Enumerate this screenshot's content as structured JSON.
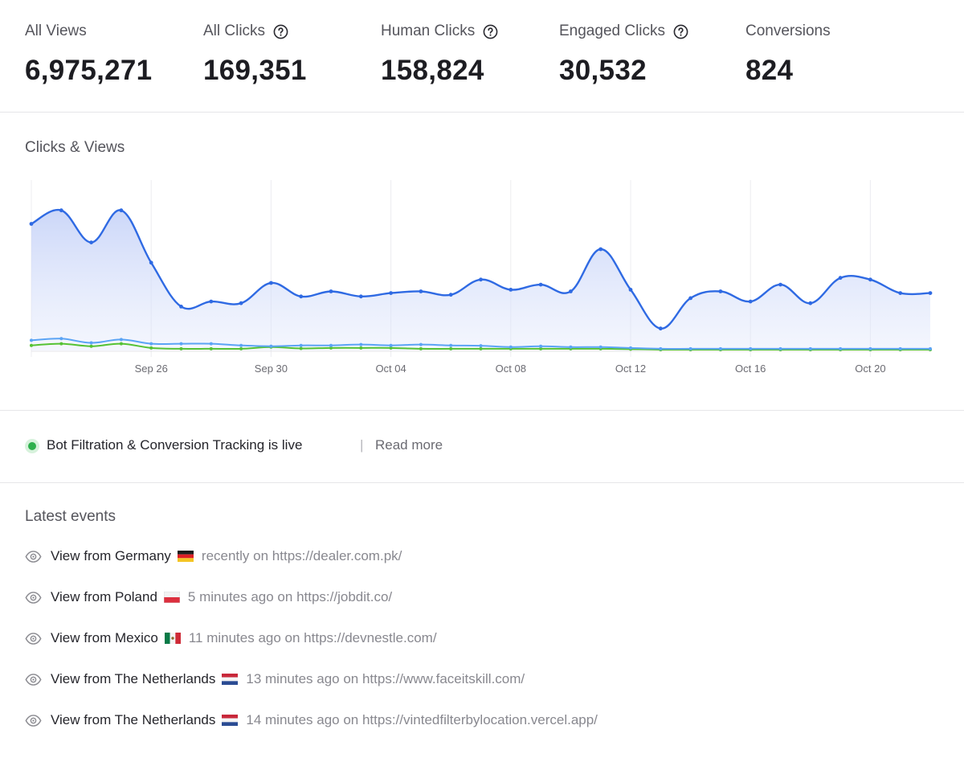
{
  "stats": [
    {
      "label": "All Views",
      "value": "6,975,271",
      "help": false
    },
    {
      "label": "All Clicks",
      "value": "169,351",
      "help": true
    },
    {
      "label": "Human Clicks",
      "value": "158,824",
      "help": true
    },
    {
      "label": "Engaged Clicks",
      "value": "30,532",
      "help": true
    },
    {
      "label": "Conversions",
      "value": "824",
      "help": false
    }
  ],
  "chart": {
    "title": "Clicks & Views"
  },
  "chart_data": {
    "type": "area",
    "title": "Clicks & Views",
    "xlabel": "",
    "ylabel": "",
    "x_start": "Sep 22",
    "x_end": "Oct 22",
    "x_tick_labels": [
      "Sep 26",
      "Sep 30",
      "Oct 04",
      "Oct 08",
      "Oct 12",
      "Oct 16",
      "Oct 20"
    ],
    "grid": "vertical",
    "legend": "none",
    "ylim": [
      0,
      100
    ],
    "colors": {
      "primary": "#2f6ae3",
      "secondary": "#5ba4f5",
      "tertiary": "#55c234",
      "fill": "#dfe6fb"
    },
    "series": [
      {
        "values": [
          75,
          83,
          64,
          83,
          52,
          26,
          29,
          28,
          40,
          32,
          35,
          32,
          34,
          35,
          33,
          42,
          36,
          39,
          35,
          60,
          36,
          13,
          31,
          35,
          29,
          39,
          28,
          43,
          42,
          34,
          34
        ]
      },
      {
        "values": [
          6,
          7,
          4.5,
          6.5,
          4,
          4,
          4,
          3,
          2.5,
          3,
          3,
          3.5,
          3,
          3.5,
          3,
          2.8,
          2,
          2.5,
          2,
          2,
          1.5,
          1,
          1,
          1,
          1,
          1,
          1,
          1,
          1,
          1,
          1
        ]
      },
      {
        "values": [
          3,
          4,
          2.5,
          4,
          1.5,
          1,
          1,
          1,
          2,
          1.2,
          1.5,
          1.5,
          1.5,
          1,
          1,
          1,
          1,
          1,
          1,
          1,
          0.8,
          0.5,
          0.5,
          0.5,
          0.5,
          0.5,
          0.5,
          0.5,
          0.5,
          0.5,
          0.5
        ]
      }
    ]
  },
  "banner": {
    "status_text": "Bot Filtration & Conversion Tracking is live",
    "separator": "|",
    "link_label": "Read more"
  },
  "events": {
    "title": "Latest events",
    "items": [
      {
        "text": "View from Germany",
        "flag": "germany-flag-icon",
        "meta": "recently on https://dealer.com.pk/"
      },
      {
        "text": "View from Poland",
        "flag": "poland-flag-icon",
        "meta": "5 minutes ago on https://jobdit.co/"
      },
      {
        "text": "View from Mexico",
        "flag": "mexico-flag-icon",
        "meta": "11 minutes ago on https://devnestle.com/"
      },
      {
        "text": "View from The Netherlands",
        "flag": "netherlands-flag-icon",
        "meta": "13 minutes ago on https://www.faceitskill.com/"
      },
      {
        "text": "View from The Netherlands",
        "flag": "netherlands-flag-icon",
        "meta": "14 minutes ago on https://vintedfilterbylocation.vercel.app/"
      }
    ]
  }
}
